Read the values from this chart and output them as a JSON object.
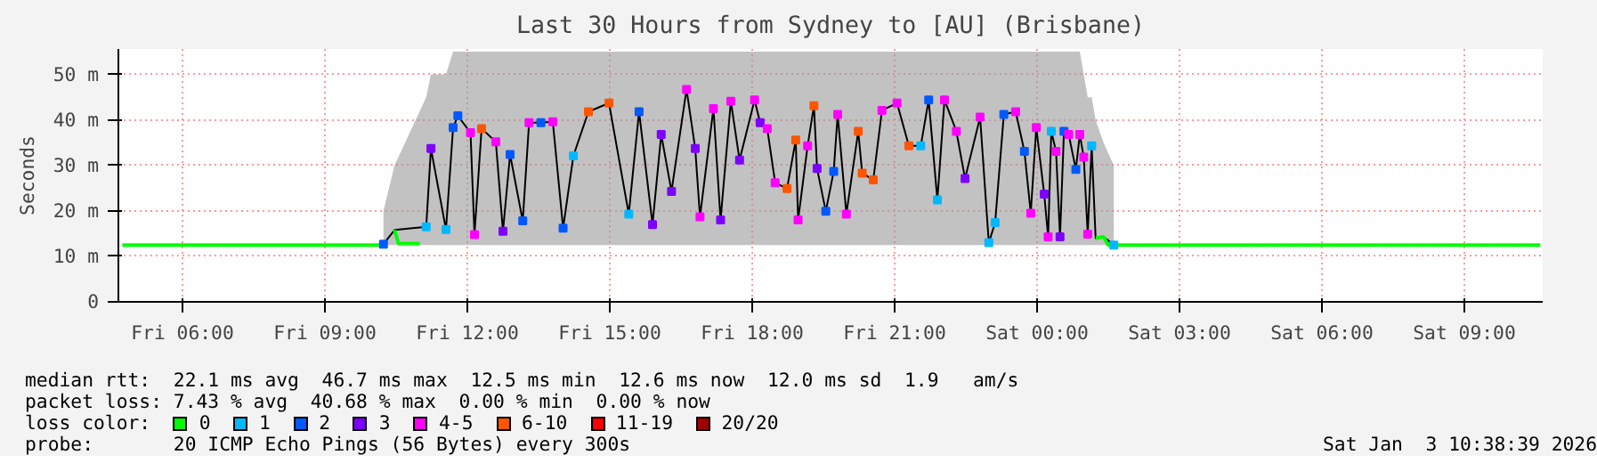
{
  "chart_data": {
    "type": "line",
    "title": "Last 30 Hours from Sydney to [AU] (Brisbane)",
    "ylabel": "Seconds",
    "legend_title": "loss color:",
    "legend": "bottom",
    "xlim": [
      "2026-01-02T04:39",
      "2026-01-03T10:39"
    ],
    "ylim": [
      0,
      55.6
    ],
    "xticks": [
      {
        "value": "2026-01-02T06:00",
        "label": "Fri 06:00"
      },
      {
        "value": "2026-01-02T09:00",
        "label": "Fri 09:00"
      },
      {
        "value": "2026-01-02T12:00",
        "label": "Fri 12:00"
      },
      {
        "value": "2026-01-02T15:00",
        "label": "Fri 15:00"
      },
      {
        "value": "2026-01-02T18:00",
        "label": "Fri 18:00"
      },
      {
        "value": "2026-01-02T21:00",
        "label": "Fri 21:00"
      },
      {
        "value": "2026-01-03T00:00",
        "label": "Sat 00:00"
      },
      {
        "value": "2026-01-03T03:00",
        "label": "Sat 03:00"
      },
      {
        "value": "2026-01-03T06:00",
        "label": "Sat 06:00"
      },
      {
        "value": "2026-01-03T09:00",
        "label": "Sat 09:00"
      }
    ],
    "yticks": [
      0,
      {
        "value": 10,
        "label": "10 m"
      },
      {
        "value": 20,
        "label": "20 m"
      },
      {
        "value": 30,
        "label": "30 m"
      },
      {
        "value": 40,
        "label": "40 m"
      },
      {
        "value": 50,
        "label": "50 m"
      }
    ],
    "grid": true,
    "annotations": [
      "median rtt:  22.1 ms avg  46.7 ms max  12.5 ms min  12.6 ms now  12.0 ms sd  1.9   am/s",
      "packet loss: 7.43 % avg  40.68 % max  0.00 % min  0.00 % now",
      "probe:       20 ICMP Echo Pings (56 Bytes) every 300s",
      "Sat Jan  3 10:38:39 2026"
    ],
    "series": [
      {
        "color": "#000000",
        "x": [
          "2026-01-02T10:14",
          "2026-01-02T10:28",
          "2026-01-02T11:08",
          "2026-01-02T11:14",
          "2026-01-02T11:33",
          "2026-01-02T11:42",
          "2026-01-02T11:48",
          "2026-01-02T12:04",
          "2026-01-02T12:09",
          "2026-01-02T12:18",
          "2026-01-02T12:36",
          "2026-01-02T12:45",
          "2026-01-02T12:54",
          "2026-01-02T13:10",
          "2026-01-02T13:18",
          "2026-01-02T13:33",
          "2026-01-02T13:48",
          "2026-01-02T14:01",
          "2026-01-02T14:14",
          "2026-01-02T14:33",
          "2026-01-02T14:59",
          "2026-01-02T15:24",
          "2026-01-02T15:37",
          "2026-01-02T15:54",
          "2026-01-02T16:05",
          "2026-01-02T16:18",
          "2026-01-02T16:37",
          "2026-01-02T16:48",
          "2026-01-02T16:54",
          "2026-01-02T17:11",
          "2026-01-02T17:20",
          "2026-01-02T17:33",
          "2026-01-02T17:44",
          "2026-01-02T18:03",
          "2026-01-02T18:10",
          "2026-01-02T18:19",
          "2026-01-02T18:29",
          "2026-01-02T18:44",
          "2026-01-02T18:55",
          "2026-01-02T18:58",
          "2026-01-02T19:10",
          "2026-01-02T19:18",
          "2026-01-02T19:22",
          "2026-01-02T19:33",
          "2026-01-02T19:43",
          "2026-01-02T19:48",
          "2026-01-02T19:59",
          "2026-01-02T20:14",
          "2026-01-02T20:19",
          "2026-01-02T20:33",
          "2026-01-02T20:44",
          "2026-01-02T21:03",
          "2026-01-02T21:18",
          "2026-01-02T21:33",
          "2026-01-02T21:43",
          "2026-01-02T21:54",
          "2026-01-02T22:03",
          "2026-01-02T22:18",
          "2026-01-02T22:29",
          "2026-01-02T22:48",
          "2026-01-02T22:59",
          "2026-01-02T23:07",
          "2026-01-02T23:18",
          "2026-01-02T23:33",
          "2026-01-02T23:44",
          "2026-01-02T23:52",
          "2026-01-02T23:59",
          "2026-01-03T00:09",
          "2026-01-03T00:14",
          "2026-01-03T00:18",
          "2026-01-03T00:24",
          "2026-01-03T00:29",
          "2026-01-03T00:34",
          "2026-01-03T00:40",
          "2026-01-03T00:49",
          "2026-01-03T00:54",
          "2026-01-03T00:59",
          "2026-01-03T01:04",
          "2026-01-03T01:09",
          "2026-01-03T01:14",
          "2026-01-03T01:24",
          "2026-01-03T01:37"
        ],
        "values": [
          12.7,
          15.8,
          16.5,
          33.7,
          15.9,
          38.3,
          40.9,
          37.2,
          14.8,
          38.1,
          35.2,
          15.5,
          32.4,
          17.8,
          39.4,
          39.4,
          39.6,
          16.2,
          32.1,
          41.8,
          43.7,
          19.3,
          41.8,
          17.0,
          36.8,
          24.3,
          46.7,
          33.7,
          18.7,
          42.5,
          18.0,
          44.1,
          31.2,
          44.4,
          39.4,
          38.1,
          26.2,
          24.9,
          35.6,
          18.0,
          34.3,
          43.1,
          29.3,
          19.9,
          28.7,
          41.2,
          19.3,
          37.5,
          28.3,
          26.8,
          42.1,
          43.7,
          34.3,
          34.3,
          44.4,
          22.4,
          44.4,
          37.5,
          27.1,
          40.6,
          13.0,
          17.4,
          41.2,
          41.8,
          33.1,
          19.5,
          38.3,
          23.7,
          14.3,
          37.5,
          33.1,
          14.3,
          37.5,
          36.8,
          29.1,
          36.8,
          31.8,
          14.9,
          34.3,
          14.0,
          14.3,
          12.5
        ],
        "lower": [
          12.5,
          12.5,
          12.5,
          12.5,
          12.5,
          12.5,
          12.5,
          12.5,
          12.5,
          12.5,
          12.5,
          12.5,
          12.5,
          12.5,
          12.5,
          12.5,
          12.5,
          12.5,
          12.5,
          12.5,
          12.5,
          12.5,
          12.5,
          12.5,
          12.5,
          12.5,
          12.5,
          12.5,
          12.5,
          12.5,
          12.5,
          12.5,
          12.5,
          12.5,
          12.5,
          12.5,
          12.5,
          12.5,
          12.5,
          12.5,
          12.5,
          12.5,
          12.5,
          12.5,
          12.5,
          12.5,
          12.5,
          12.5,
          12.5,
          12.5,
          12.5,
          12.5,
          12.5,
          12.5,
          12.5,
          12.5,
          12.5,
          12.5,
          12.5,
          12.5,
          12.5,
          12.5,
          12.5,
          12.5,
          12.5,
          12.5,
          12.5,
          12.5,
          12.5,
          12.5,
          12.5,
          12.5,
          12.5,
          12.5,
          12.5,
          12.5,
          12.5,
          12.5,
          12.5,
          12.5,
          12.5,
          12.5
        ],
        "upper": [
          20,
          30,
          45,
          50,
          50,
          55,
          55,
          55,
          55,
          55,
          55,
          55,
          55,
          55,
          55,
          55,
          55,
          55,
          55,
          55,
          55,
          55,
          55,
          55,
          55,
          55,
          55,
          55,
          55,
          55,
          55,
          55,
          55,
          55,
          55,
          55,
          55,
          55,
          55,
          55,
          55,
          55,
          55,
          55,
          55,
          55,
          55,
          55,
          55,
          55,
          55,
          55,
          55,
          55,
          55,
          55,
          55,
          55,
          55,
          55,
          55,
          55,
          55,
          55,
          55,
          55,
          55,
          55,
          55,
          55,
          55,
          55,
          55,
          55,
          55,
          55,
          50,
          45,
          45,
          40,
          35,
          30
        ]
      },
      {
        "name": "0",
        "color": "#00ff00",
        "x": [
          "2026-01-02T04:44",
          "2026-01-02T10:12",
          "2026-01-02T10:18",
          "2026-01-02T10:28",
          "2026-01-02T10:33",
          "2026-01-02T11:00",
          "2026-01-02T11:18",
          "2026-01-03T01:14",
          "2026-01-03T01:24",
          "2026-01-03T01:30",
          "2026-01-03T10:36"
        ],
        "values": [
          12.5,
          12.5,
          null,
          15.8,
          12.8,
          12.8,
          null,
          14.0,
          14.3,
          12.5,
          12.5
        ]
      },
      {
        "type": "scatter",
        "name": "1",
        "color": "#00b8ff",
        "x": [
          "2026-01-02T11:08",
          "2026-01-02T11:33",
          "2026-01-02T14:14",
          "2026-01-02T15:24",
          "2026-01-02T21:33",
          "2026-01-02T21:54",
          "2026-01-02T22:59",
          "2026-01-02T23:07",
          "2026-01-03T00:18",
          "2026-01-03T01:09",
          "2026-01-03T01:37"
        ],
        "values": [
          16.5,
          15.9,
          32.1,
          19.3,
          34.3,
          22.4,
          13.0,
          17.4,
          37.5,
          34.3,
          12.5
        ]
      },
      {
        "type": "scatter",
        "name": "2",
        "color": "#0059ff",
        "x": [
          "2026-01-02T10:14",
          "2026-01-02T11:42",
          "2026-01-02T11:48",
          "2026-01-02T12:54",
          "2026-01-02T13:10",
          "2026-01-02T13:33",
          "2026-01-02T14:01",
          "2026-01-02T15:37",
          "2026-01-02T19:33",
          "2026-01-02T19:43",
          "2026-01-02T21:43",
          "2026-01-02T23:18",
          "2026-01-02T23:44",
          "2026-01-03T00:34",
          "2026-01-03T00:49"
        ],
        "values": [
          12.7,
          38.3,
          40.9,
          32.4,
          17.8,
          39.4,
          16.2,
          41.8,
          19.9,
          28.7,
          44.4,
          41.2,
          33.1,
          37.5,
          29.1
        ]
      },
      {
        "type": "scatter",
        "name": "3",
        "color": "#7e00ff",
        "x": [
          "2026-01-02T11:14",
          "2026-01-02T12:45",
          "2026-01-02T15:54",
          "2026-01-02T16:05",
          "2026-01-02T16:18",
          "2026-01-02T16:48",
          "2026-01-02T17:20",
          "2026-01-02T17:44",
          "2026-01-02T18:10",
          "2026-01-02T19:22",
          "2026-01-02T22:29",
          "2026-01-03T00:09",
          "2026-01-03T00:29"
        ],
        "values": [
          33.7,
          15.5,
          17.0,
          36.8,
          24.3,
          33.7,
          18.0,
          31.2,
          39.4,
          29.3,
          27.1,
          23.7,
          14.3
        ]
      },
      {
        "type": "scatter",
        "name": "4-5",
        "color": "#ff00ff",
        "x": [
          "2026-01-02T12:04",
          "2026-01-02T12:09",
          "2026-01-02T12:36",
          "2026-01-02T13:18",
          "2026-01-02T13:48",
          "2026-01-02T16:37",
          "2026-01-02T16:54",
          "2026-01-02T17:11",
          "2026-01-02T17:33",
          "2026-01-02T18:03",
          "2026-01-02T18:19",
          "2026-01-02T18:29",
          "2026-01-02T18:58",
          "2026-01-02T19:10",
          "2026-01-02T19:48",
          "2026-01-02T19:59",
          "2026-01-02T20:44",
          "2026-01-02T21:03",
          "2026-01-02T22:03",
          "2026-01-02T22:18",
          "2026-01-02T22:48",
          "2026-01-02T23:33",
          "2026-01-02T23:52",
          "2026-01-02T23:59",
          "2026-01-03T00:14",
          "2026-01-03T00:24",
          "2026-01-03T00:40",
          "2026-01-03T00:54",
          "2026-01-03T00:59",
          "2026-01-03T01:04"
        ],
        "values": [
          37.2,
          14.8,
          35.2,
          39.4,
          39.6,
          46.7,
          18.7,
          42.5,
          44.1,
          44.4,
          38.1,
          26.2,
          18.0,
          34.3,
          41.2,
          19.3,
          42.1,
          43.7,
          44.4,
          37.5,
          40.6,
          41.8,
          19.5,
          38.3,
          14.3,
          33.1,
          36.8,
          36.8,
          31.8,
          14.9
        ]
      },
      {
        "type": "scatter",
        "name": "6-10",
        "color": "#ff5500",
        "x": [
          "2026-01-02T12:18",
          "2026-01-02T14:33",
          "2026-01-02T14:59",
          "2026-01-02T18:44",
          "2026-01-02T18:55",
          "2026-01-02T19:18",
          "2026-01-02T20:14",
          "2026-01-02T20:19",
          "2026-01-02T20:33",
          "2026-01-02T21:18"
        ],
        "values": [
          38.1,
          41.8,
          43.7,
          24.9,
          35.6,
          43.1,
          37.5,
          28.3,
          26.8,
          34.3
        ]
      },
      {
        "type": "scatter",
        "name": "11-19",
        "color": "#ff0000"
      },
      {
        "type": "scatter",
        "name": "20/20",
        "color": "#a10000"
      }
    ]
  }
}
